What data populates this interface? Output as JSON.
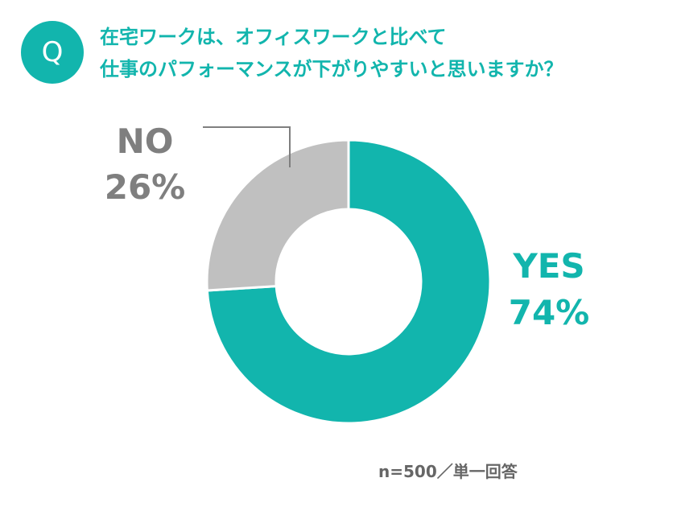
{
  "question": {
    "badge": "Q",
    "line1": "在宅ワークは、オフィスワークと比べて",
    "line2": "仕事のパフォーマンスが下がりやすいと思いますか？"
  },
  "footnote": "n=500／単一回答",
  "colors": {
    "accent": "#12b5ad",
    "no_slice": "#c0c0c0",
    "no_label": "#7f7f7f"
  },
  "chart_data": {
    "type": "pie",
    "donut": true,
    "slices": [
      {
        "name": "YES",
        "value": 74,
        "label": "74%",
        "color": "#12b5ad"
      },
      {
        "name": "NO",
        "value": 26,
        "label": "26%",
        "color": "#c0c0c0"
      }
    ]
  }
}
